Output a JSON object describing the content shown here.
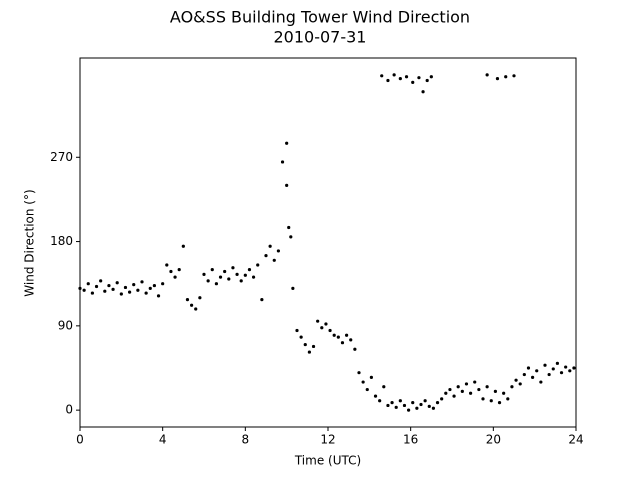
{
  "chart_data": {
    "type": "scatter",
    "title": "AO&SS Building Tower Wind Direction",
    "subtitle": "2010-07-31",
    "x_label": "Time (UTC)",
    "y_label": "Wind Direction (°)",
    "xlim": [
      0,
      24
    ],
    "xticks": [
      0,
      4,
      8,
      12,
      16,
      20,
      24
    ],
    "ylim": [
      -18,
      376
    ],
    "yticks": [
      0,
      90,
      180,
      270
    ],
    "color": "#000000",
    "x": [
      0.0,
      0.2,
      0.4,
      0.6,
      0.8,
      1.0,
      1.2,
      1.4,
      1.6,
      1.8,
      2.0,
      2.2,
      2.4,
      2.6,
      2.8,
      3.0,
      3.2,
      3.4,
      3.6,
      3.8,
      4.0,
      4.2,
      4.4,
      4.6,
      4.8,
      5.0,
      5.2,
      5.4,
      5.6,
      5.8,
      6.0,
      6.2,
      6.4,
      6.6,
      6.8,
      7.0,
      7.2,
      7.4,
      7.6,
      7.8,
      8.0,
      8.2,
      8.4,
      8.6,
      8.8,
      9.0,
      9.2,
      9.4,
      9.6,
      9.8,
      10.0,
      10.0,
      10.1,
      10.2,
      10.3,
      10.5,
      10.7,
      10.9,
      11.1,
      11.3,
      11.5,
      11.7,
      11.9,
      12.1,
      12.3,
      12.5,
      12.7,
      12.9,
      13.1,
      13.3,
      13.5,
      13.7,
      13.9,
      14.1,
      14.3,
      14.5,
      14.7,
      14.9,
      15.1,
      15.3,
      15.5,
      15.7,
      15.9,
      16.1,
      16.3,
      16.5,
      16.7,
      16.9,
      17.1,
      17.3,
      17.5,
      17.7,
      17.9,
      18.1,
      18.3,
      18.5,
      18.7,
      18.9,
      19.1,
      19.3,
      19.5,
      19.7,
      19.9,
      20.1,
      20.3,
      20.5,
      20.7,
      20.9,
      21.1,
      21.3,
      21.5,
      21.7,
      21.9,
      22.1,
      22.3,
      22.5,
      22.7,
      22.9,
      23.1,
      23.3,
      23.5,
      23.7,
      23.9,
      14.6,
      14.9,
      15.2,
      15.5,
      15.8,
      16.1,
      16.4,
      16.6,
      16.8,
      17.0,
      19.7,
      20.2,
      20.6,
      21.0
    ],
    "values": [
      130,
      128,
      135,
      125,
      132,
      138,
      127,
      133,
      129,
      136,
      124,
      131,
      126,
      134,
      128,
      137,
      125,
      130,
      133,
      122,
      135,
      155,
      148,
      142,
      150,
      175,
      118,
      112,
      108,
      120,
      145,
      138,
      150,
      135,
      142,
      148,
      140,
      152,
      145,
      138,
      144,
      150,
      142,
      155,
      118,
      165,
      175,
      160,
      170,
      265,
      285,
      240,
      195,
      185,
      130,
      85,
      78,
      70,
      62,
      68,
      95,
      88,
      92,
      85,
      80,
      78,
      72,
      80,
      75,
      65,
      40,
      30,
      22,
      35,
      15,
      10,
      25,
      5,
      8,
      3,
      10,
      5,
      0,
      8,
      2,
      6,
      10,
      4,
      2,
      8,
      12,
      18,
      22,
      15,
      25,
      20,
      28,
      18,
      30,
      22,
      12,
      25,
      10,
      20,
      8,
      18,
      12,
      25,
      32,
      28,
      38,
      45,
      35,
      42,
      30,
      48,
      38,
      44,
      50,
      40,
      46,
      42,
      45,
      357,
      352,
      358,
      354,
      356,
      350,
      355,
      340,
      352,
      356,
      358,
      354,
      356,
      357
    ]
  }
}
